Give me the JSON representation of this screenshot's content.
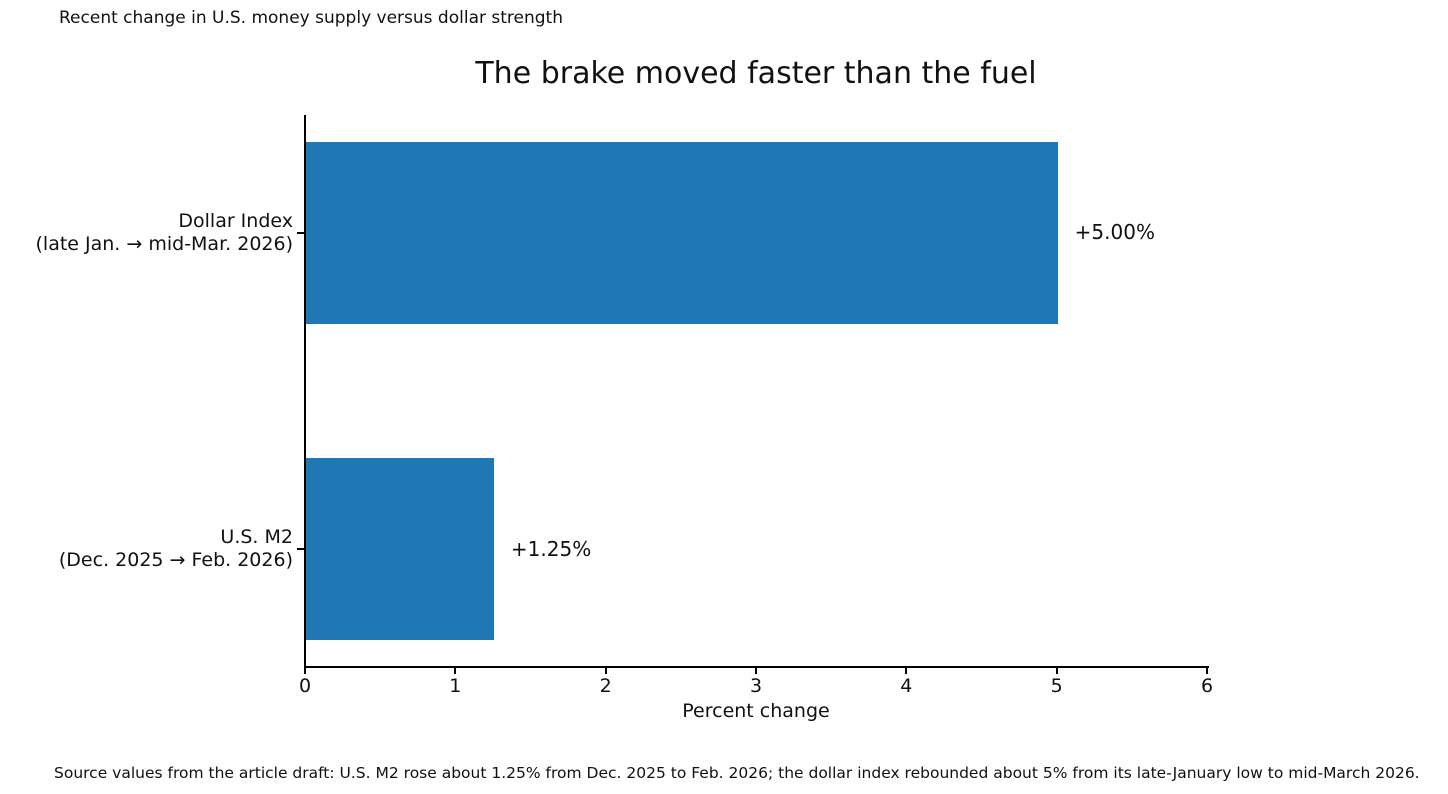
{
  "figure": {
    "header_note": "Recent change in U.S. money supply versus dollar strength",
    "source_note": "Source values from the article draft: U.S. M2 rose about 1.25% from Dec. 2025 to Feb. 2026; the dollar index rebounded about 5% from its late-January low to mid-March 2026."
  },
  "chart_data": {
    "type": "bar",
    "orientation": "horizontal",
    "title": "The brake moved faster than the fuel",
    "xlabel": "Percent change",
    "xlim": [
      0,
      6
    ],
    "xticks": [
      "0",
      "1",
      "2",
      "3",
      "4",
      "5",
      "6"
    ],
    "grid": false,
    "bar_color": "#1f77b4",
    "axis_color": "#000000",
    "categories": [
      "Dollar Index (late Jan. → mid-Mar. 2026)",
      "U.S. M2 (Dec. 2025 → Feb. 2026)"
    ],
    "values": [
      5.0,
      1.25
    ],
    "bars": [
      {
        "label_line1": "Dollar Index",
        "label_line2": "(late Jan. → mid-Mar. 2026)",
        "value": 5.0,
        "value_label": "+5.00%"
      },
      {
        "label_line1": "U.S. M2",
        "label_line2": "(Dec. 2025 → Feb. 2026)",
        "value": 1.25,
        "value_label": "+1.25%"
      }
    ]
  }
}
